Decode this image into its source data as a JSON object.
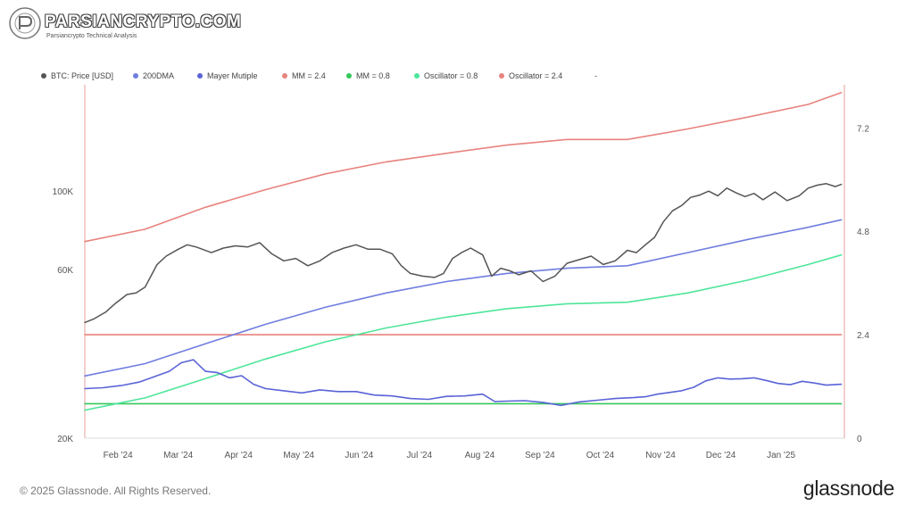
{
  "watermark": {
    "title": "PARSIANCRYPTO.COM",
    "subtitle": "Parsiancrypto Technical Analysis"
  },
  "footer": {
    "copyright": "© 2025 Glassnode. All Rights Reserved.",
    "brand": "glassnode"
  },
  "colors": {
    "price": "#555555",
    "dma200": "#6f7de0",
    "mayer": "#5a63d6",
    "mm24": "#e8837e",
    "mm08": "#35c75a",
    "osc08": "#4ee59a",
    "osc24": "#e8837e"
  },
  "chart_data": {
    "type": "line",
    "legend_placement": "top-left",
    "legend": [
      {
        "name": "BTC: Price [USD]",
        "color": "#555555"
      },
      {
        "name": "200DMA",
        "color": "#6f7de0"
      },
      {
        "name": "Mayer Mutiple",
        "color": "#5a63d6"
      },
      {
        "name": "MM = 2.4",
        "color": "#e8837e"
      },
      {
        "name": "MM = 0.8",
        "color": "#35c75a"
      },
      {
        "name": "Oscillator = 0.8",
        "color": "#4ee59a"
      },
      {
        "name": "Oscillator = 2.4",
        "color": "#e8837e"
      },
      {
        "name": "-",
        "color": ""
      }
    ],
    "x_ticks": [
      "Feb '24",
      "Mar '24",
      "Apr '24",
      "May '24",
      "Jun '24",
      "Jul '24",
      "Aug '24",
      "Sep '24",
      "Oct '24",
      "Nov '24",
      "Dec '24",
      "Jan '25"
    ],
    "x_range": [
      0,
      12.6
    ],
    "y_left": {
      "scale": "log",
      "ticks": [
        {
          "value": 20000,
          "label": "20K"
        },
        {
          "value": 60000,
          "label": "60K"
        },
        {
          "value": 100000,
          "label": "100K"
        }
      ],
      "range": [
        20000,
        200000
      ]
    },
    "y_right": {
      "scale": "linear",
      "ticks": [
        {
          "value": 0,
          "label": "0"
        },
        {
          "value": 2.4,
          "label": "2.4"
        },
        {
          "value": 4.8,
          "label": "4.8"
        },
        {
          "value": 7.2,
          "label": "7.2"
        }
      ],
      "range": [
        0,
        8.2
      ]
    },
    "grid": false,
    "series": [
      {
        "name": "BTC: Price [USD]",
        "axis": "left",
        "color": "#555555",
        "x": [
          0,
          0.15,
          0.35,
          0.5,
          0.7,
          0.85,
          1.0,
          1.2,
          1.35,
          1.55,
          1.7,
          1.85,
          2.1,
          2.3,
          2.5,
          2.7,
          2.9,
          3.1,
          3.3,
          3.5,
          3.7,
          3.9,
          4.1,
          4.3,
          4.5,
          4.7,
          4.9,
          5.1,
          5.25,
          5.4,
          5.6,
          5.8,
          5.95,
          6.1,
          6.25,
          6.4,
          6.6,
          6.75,
          6.9,
          7.05,
          7.2,
          7.4,
          7.6,
          7.8,
          8.0,
          8.2,
          8.4,
          8.6,
          8.8,
          9.0,
          9.15,
          9.3,
          9.45,
          9.6,
          9.75,
          9.9,
          10.05,
          10.2,
          10.35,
          10.5,
          10.65,
          10.8,
          10.95,
          11.1,
          11.25,
          11.45,
          11.65,
          11.85,
          12.0,
          12.15,
          12.3,
          12.45,
          12.55
        ],
        "values": [
          42500,
          43500,
          45500,
          48000,
          51000,
          51500,
          53500,
          62000,
          65500,
          68500,
          70500,
          69500,
          67000,
          69000,
          70000,
          69500,
          71500,
          66500,
          63500,
          64500,
          61500,
          63500,
          67000,
          69000,
          70500,
          68500,
          68500,
          66500,
          61500,
          58500,
          57500,
          57000,
          58500,
          64500,
          67000,
          69000,
          66000,
          57500,
          60500,
          59500,
          58000,
          59500,
          55500,
          57500,
          62500,
          64000,
          65500,
          62000,
          63500,
          68000,
          67000,
          70500,
          74000,
          82000,
          88000,
          91000,
          96000,
          97500,
          100000,
          97000,
          102000,
          99000,
          96500,
          98500,
          94500,
          99500,
          94000,
          97000,
          102000,
          104000,
          105000,
          103000,
          104500
        ]
      },
      {
        "name": "200DMA",
        "axis": "left",
        "color": "#6f7de0",
        "x": [
          0,
          1,
          2,
          3,
          4,
          5,
          6,
          7,
          8,
          9,
          10,
          11,
          12,
          12.55
        ],
        "values": [
          30000,
          32500,
          37000,
          42000,
          47000,
          51500,
          55500,
          58500,
          60500,
          61500,
          67000,
          73000,
          79000,
          83000
        ]
      },
      {
        "name": "Mayer Mutiple",
        "axis": "right",
        "color": "#5a63d6",
        "x": [
          0,
          0.3,
          0.6,
          0.9,
          1.2,
          1.4,
          1.6,
          1.8,
          2.0,
          2.2,
          2.4,
          2.6,
          2.8,
          3.0,
          3.3,
          3.6,
          3.9,
          4.2,
          4.5,
          4.8,
          5.1,
          5.4,
          5.7,
          6.0,
          6.3,
          6.6,
          6.8,
          7.0,
          7.3,
          7.6,
          7.9,
          8.2,
          8.5,
          8.8,
          9.1,
          9.3,
          9.5,
          9.7,
          9.9,
          10.1,
          10.3,
          10.5,
          10.7,
          10.9,
          11.1,
          11.3,
          11.5,
          11.7,
          11.9,
          12.1,
          12.3,
          12.55
        ],
        "values": [
          1.15,
          1.17,
          1.22,
          1.3,
          1.45,
          1.55,
          1.75,
          1.82,
          1.55,
          1.52,
          1.4,
          1.45,
          1.25,
          1.15,
          1.1,
          1.05,
          1.12,
          1.08,
          1.08,
          1.0,
          0.98,
          0.92,
          0.9,
          0.97,
          0.98,
          1.02,
          0.85,
          0.86,
          0.87,
          0.83,
          0.76,
          0.84,
          0.88,
          0.92,
          0.94,
          0.96,
          1.02,
          1.06,
          1.1,
          1.18,
          1.33,
          1.4,
          1.37,
          1.38,
          1.4,
          1.34,
          1.27,
          1.24,
          1.32,
          1.28,
          1.23,
          1.25
        ]
      },
      {
        "name": "MM = 2.4",
        "axis": "right",
        "color": "#e8837e",
        "x": [
          0,
          12.55
        ],
        "values": [
          2.4,
          2.4
        ]
      },
      {
        "name": "MM = 0.8",
        "axis": "right",
        "color": "#35c75a",
        "x": [
          0,
          12.55
        ],
        "values": [
          0.8,
          0.8
        ]
      },
      {
        "name": "Oscillator = 0.8",
        "axis": "left",
        "color": "#4ee59a",
        "x": [
          0,
          1,
          2,
          3,
          4,
          5,
          6,
          7,
          8,
          9,
          10,
          11,
          12,
          12.55
        ],
        "values": [
          24000,
          26000,
          29500,
          33500,
          37500,
          41000,
          44000,
          46500,
          48000,
          48500,
          51500,
          56000,
          62000,
          66000
        ]
      },
      {
        "name": "Oscillator = 2.4",
        "axis": "left",
        "color": "#e8837e",
        "x": [
          0,
          1,
          2,
          3,
          4,
          5,
          6,
          7,
          8,
          9,
          10,
          11,
          12,
          12.55
        ],
        "values": [
          72000,
          78000,
          90000,
          101000,
          112000,
          121000,
          128000,
          135000,
          140000,
          140000,
          150000,
          162000,
          176000,
          190000
        ]
      }
    ]
  }
}
